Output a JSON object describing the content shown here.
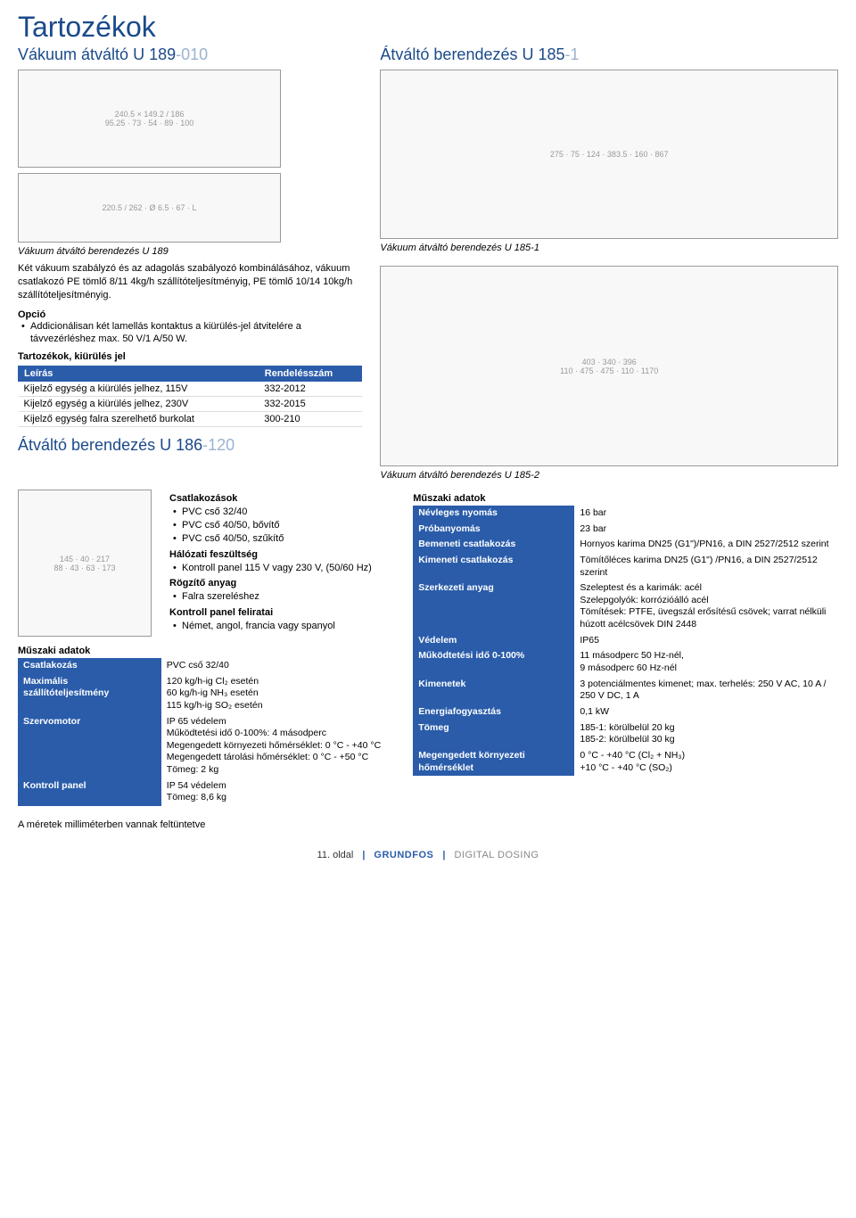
{
  "title": "Tartozékok",
  "left_top": {
    "heading_main": "Vákuum átváltó U 189",
    "heading_dim": "-010",
    "caption": "Vákuum átváltó berendezés U 189",
    "desc": "Két vákuum szabályzó és az adagolás szabályozó kombinálásához, vákuum csatlakozó PE tömlő 8/11 4kg/h szállítóteljesítményig, PE tömlő 10/14 10kg/h szállítóteljesítményig.",
    "option_label": "Opció",
    "option_item": "Addicionálisan két lamellás kontaktus a kiürülés-jel átvitelére a távvezérléshez max. 50 V/1 A/50 W."
  },
  "right_top": {
    "heading_main": "Átváltó berendezés U 185",
    "heading_dim": "-1",
    "caption": "Vákuum átváltó berendezés U 185-1"
  },
  "accessories_table": {
    "title": "Tartozékok, kiürülés jel",
    "col1": "Leírás",
    "col2": "Rendelésszám",
    "rows": [
      {
        "d": "Kijelző egység a kiürülés jelhez, 115V",
        "n": "332-2012"
      },
      {
        "d": "Kijelző egység a kiürülés jelhez, 230V",
        "n": "332-2015"
      },
      {
        "d": "Kijelző egység falra szerelhető burkolat",
        "n": "300-210"
      }
    ]
  },
  "mid_left": {
    "heading_main": "Átváltó berendezés U 186",
    "heading_dim": "-120"
  },
  "mid_right_caption": "Vákuum átváltó berendezés U 185-2",
  "connections": {
    "title": "Csatlakozások",
    "items": [
      "PVC cső 32/40",
      "PVC cső 40/50, bővítő",
      "PVC cső 40/50, szűkítő"
    ],
    "voltage_title": "Hálózati feszültség",
    "voltage_item": "Kontroll panel 115 V vagy 230 V, (50/60 Hz)",
    "fix_title": "Rögzítő anyag",
    "fix_item": "Falra szereléshez",
    "panel_title": "Kontroll panel feliratai",
    "panel_item": "Német, angol, francia vagy spanyol"
  },
  "left_spec": {
    "title": "Műszaki adatok",
    "rows": [
      {
        "k": "Csatlakozás",
        "v": "PVC cső 32/40"
      },
      {
        "k": "Maximális szállítóteljesítmény",
        "v": "120 kg/h-ig Cl₂ esetén\n60 kg/h-ig NH₃ esetén\n115 kg/h-ig SO₂ esetén"
      },
      {
        "k": "Szervomotor",
        "v": "IP 65 védelem\nMűködtetési idő 0-100%: 4 másodperc\nMegengedett környezeti hőmérséklet: 0 °C - +40 °C\nMegengedett tárolási hőmérséklet: 0 °C - +50 °C\nTömeg: 2 kg"
      },
      {
        "k": "Kontroll panel",
        "v": "IP 54 védelem\nTömeg: 8,6 kg"
      }
    ]
  },
  "right_spec": {
    "title": "Műszaki adatok",
    "rows": [
      {
        "k": "Névleges nyomás",
        "v": "16 bar"
      },
      {
        "k": "Próbanyomás",
        "v": "23 bar"
      },
      {
        "k": "Bemeneti csatlakozás",
        "v": "Hornyos karima DN25 (G1\")/PN16, a DIN 2527/2512 szerint"
      },
      {
        "k": "Kimeneti csatlakozás",
        "v": "Tömítőléces karima DN25 (G1\") /PN16, a DIN 2527/2512 szerint"
      },
      {
        "k": "Szerkezeti anyag",
        "v": "Szeleptest és a karimák: acél\nSzelepgolyók: korrózióálló acél\nTömítések: PTFE, üvegszál erősítésű csövek; varrat nélküli húzott acélcsövek DIN 2448"
      },
      {
        "k": "Védelem",
        "v": "IP65"
      },
      {
        "k": "Működtetési idő 0-100%",
        "v": "11 másodperc 50 Hz-nél,\n 9 másodperc 60 Hz-nél"
      },
      {
        "k": "Kimenetek",
        "v": "3 potenciálmentes kimenet; max. terhelés: 250 V AC, 10 A / 250 V DC, 1 A"
      },
      {
        "k": "Energiafogyasztás",
        "v": "0,1 kW"
      },
      {
        "k": "Tömeg",
        "v": "185-1: körülbelül 20 kg\n185-2: körülbelül 30 kg"
      },
      {
        "k": "Megengedett környezeti hőmérséklet",
        "v": "0 °C - +40 °C (Cl₂ + NH₃)\n+10 °C - +40 °C (SO₂)"
      }
    ]
  },
  "note": "A méretek milliméterben vannak feltüntetve",
  "footer": {
    "page": "11. oldal",
    "brand": "GRUNDFOS",
    "tag": "DIGITAL DOSING"
  },
  "colors": {
    "heading": "#1a4a8a",
    "dim": "#9ab3d0",
    "table_head": "#2a5caa"
  }
}
